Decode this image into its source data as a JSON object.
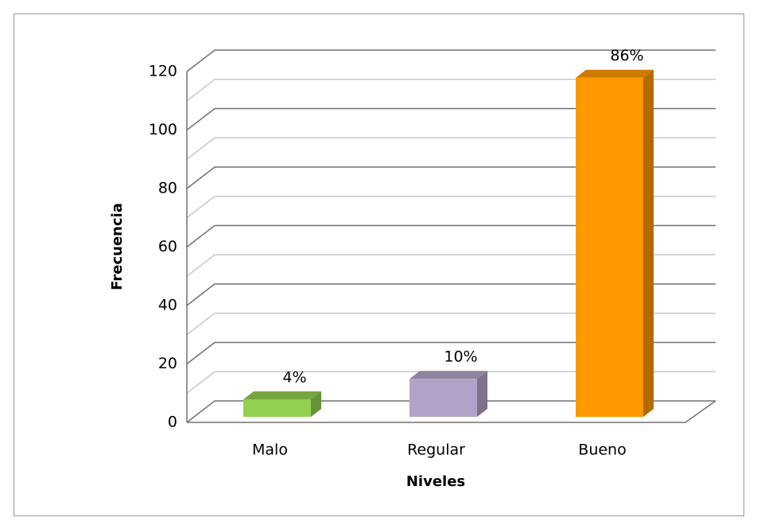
{
  "chart_data": {
    "type": "bar3d",
    "x_label": "Niveles",
    "y_label": "Frecuencia",
    "categories": [
      "Malo",
      "Regular",
      "Bueno"
    ],
    "values": [
      6,
      13,
      116
    ],
    "percent_labels": [
      "4%",
      "10%",
      "86%"
    ],
    "colors": [
      "#92d050",
      "#b3a2c7",
      "#ff9900"
    ],
    "ylim": [
      0,
      120
    ],
    "yticks": [
      0,
      20,
      40,
      60,
      80,
      100,
      120
    ],
    "grid": true
  }
}
